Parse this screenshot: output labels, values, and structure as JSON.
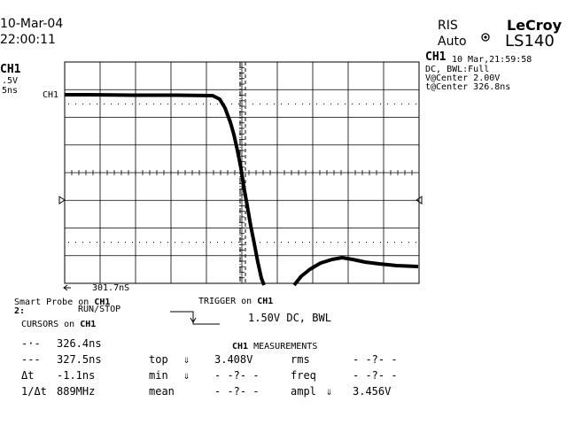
{
  "header": {
    "date": "10-Mar-04",
    "time": "22:00:11",
    "mode": "RIS",
    "mode_icon": "circle-dot-icon",
    "trigger_mode": "Auto",
    "brand": "LeCroy",
    "model": "LS140"
  },
  "left_panel": {
    "channel": "CH1",
    "volts_div": ".5V",
    "time_div": "5ns"
  },
  "grid_marker": "CH1",
  "channel_info": {
    "channel": "CH1",
    "timestamp": "10 Mar,21:59:58",
    "coupling": "DC, BWL:Full",
    "v_center": "V@Center 2.00V",
    "t_center": "t@Center 326.8ns"
  },
  "cursor_delta_readout": "301.7nS",
  "smart_probe": {
    "line1_prefix": "Smart Probe on",
    "line1_channel": "CH1",
    "line2_num": "2:",
    "line2_label": "RUN/STOP"
  },
  "trigger": {
    "title_prefix": "TRIGGER on",
    "title_channel": "CH1",
    "level": "1.50V DC, BWL"
  },
  "cursors": {
    "title_prefix": "CURSORS on",
    "title_channel": "CH1",
    "rows": [
      {
        "symbol": "-·-",
        "value": "326.4ns"
      },
      {
        "symbol": "---",
        "value": "327.5ns"
      },
      {
        "symbol": "Δt",
        "value": "-1.1ns"
      },
      {
        "symbol": "1/Δt",
        "value": "889MHz"
      }
    ]
  },
  "measurements": {
    "title_channel": "CH1",
    "title_label": "MEASUREMENTS",
    "left": [
      {
        "name": "top",
        "arrow": "⇓",
        "value": "3.408V"
      },
      {
        "name": "min",
        "arrow": "⇓",
        "value": "- -?- -"
      },
      {
        "name": "mean",
        "arrow": "",
        "value": "- -?- -"
      }
    ],
    "right": [
      {
        "name": "rms",
        "arrow": "",
        "value": "- -?- -"
      },
      {
        "name": "freq",
        "arrow": "",
        "value": "- -?- -"
      },
      {
        "name": "ampl",
        "arrow": "⇓",
        "value": "3.456V"
      }
    ]
  }
}
